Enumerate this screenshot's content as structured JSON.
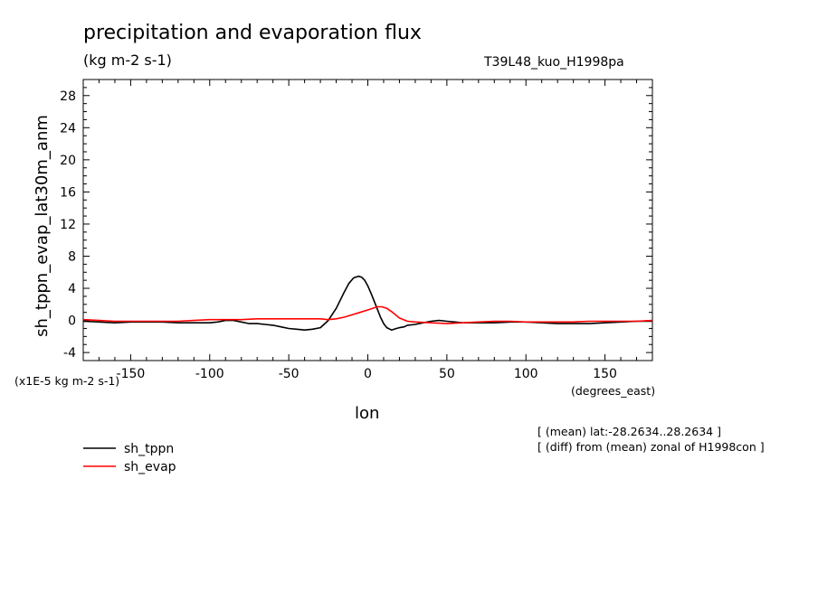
{
  "header": {
    "title": "precipitation and evaporation flux",
    "units": "(kg m-2 s-1)",
    "experiment": "T39L48_kuo_H1998pa"
  },
  "notes": {
    "scale": "(x1E-5 kg m-2 s-1)",
    "x_unit": "(degrees_east)",
    "mean_range": "[ (mean) lat:-28.2634..28.2634 ]",
    "diff_from": "[ (diff) from (mean) zonal of H1998con ]"
  },
  "chart_data": {
    "type": "line",
    "xlabel": "lon",
    "ylabel": "sh_tppn_evap_lat30m_anm",
    "xlim": [
      -180,
      180
    ],
    "ylim": [
      -5,
      30
    ],
    "xticks": [
      -150,
      -100,
      -50,
      0,
      50,
      100,
      150
    ],
    "xtick_labels": [
      "-150",
      "-100",
      "-50",
      "0",
      "50",
      "100",
      "150"
    ],
    "yticks": [
      -4,
      0,
      4,
      8,
      12,
      16,
      20,
      24,
      28
    ],
    "ytick_labels": [
      "-4",
      "0",
      "4",
      "8",
      "12",
      "16",
      "20",
      "24",
      "28"
    ],
    "legend_position": "bottom-left, below plot",
    "series": [
      {
        "name": "sh_tppn",
        "color": "#000000",
        "x": [
          -180,
          -170,
          -160,
          -150,
          -140,
          -130,
          -120,
          -110,
          -100,
          -95,
          -90,
          -85,
          -80,
          -75,
          -70,
          -65,
          -60,
          -55,
          -50,
          -45,
          -40,
          -35,
          -30,
          -25,
          -20,
          -15,
          -12,
          -9,
          -6,
          -4,
          -2,
          0,
          2,
          4,
          6,
          8,
          10,
          12,
          15,
          18,
          20,
          23,
          25,
          30,
          35,
          40,
          45,
          50,
          55,
          60,
          70,
          80,
          90,
          100,
          110,
          120,
          130,
          140,
          150,
          160,
          170,
          180
        ],
        "y": [
          -0.1,
          -0.2,
          -0.3,
          -0.2,
          -0.2,
          -0.2,
          -0.3,
          -0.3,
          -0.3,
          -0.2,
          0.0,
          0.0,
          -0.2,
          -0.4,
          -0.4,
          -0.5,
          -0.6,
          -0.8,
          -1.0,
          -1.1,
          -1.2,
          -1.1,
          -0.9,
          0.0,
          1.5,
          3.5,
          4.6,
          5.3,
          5.5,
          5.4,
          5.0,
          4.3,
          3.4,
          2.4,
          1.4,
          0.4,
          -0.4,
          -0.9,
          -1.2,
          -1.0,
          -0.9,
          -0.8,
          -0.6,
          -0.5,
          -0.3,
          -0.1,
          0.0,
          -0.1,
          -0.2,
          -0.3,
          -0.3,
          -0.3,
          -0.2,
          -0.2,
          -0.3,
          -0.4,
          -0.4,
          -0.4,
          -0.3,
          -0.2,
          -0.1,
          -0.1
        ]
      },
      {
        "name": "sh_evap",
        "color": "#ff0000",
        "x": [
          -180,
          -170,
          -160,
          -150,
          -140,
          -130,
          -120,
          -110,
          -100,
          -90,
          -80,
          -70,
          -60,
          -50,
          -40,
          -30,
          -25,
          -20,
          -15,
          -10,
          -5,
          0,
          3,
          6,
          9,
          12,
          15,
          20,
          25,
          30,
          40,
          50,
          60,
          70,
          80,
          90,
          100,
          110,
          120,
          130,
          140,
          150,
          160,
          170,
          180
        ],
        "y": [
          0.1,
          0.0,
          -0.1,
          -0.1,
          -0.1,
          -0.1,
          -0.1,
          0.0,
          0.1,
          0.1,
          0.1,
          0.2,
          0.2,
          0.2,
          0.2,
          0.2,
          0.1,
          0.2,
          0.4,
          0.7,
          1.0,
          1.3,
          1.5,
          1.7,
          1.7,
          1.5,
          1.1,
          0.3,
          -0.1,
          -0.2,
          -0.3,
          -0.4,
          -0.3,
          -0.2,
          -0.1,
          -0.1,
          -0.2,
          -0.2,
          -0.2,
          -0.2,
          -0.1,
          -0.1,
          -0.1,
          -0.1,
          0.0
        ]
      }
    ]
  }
}
